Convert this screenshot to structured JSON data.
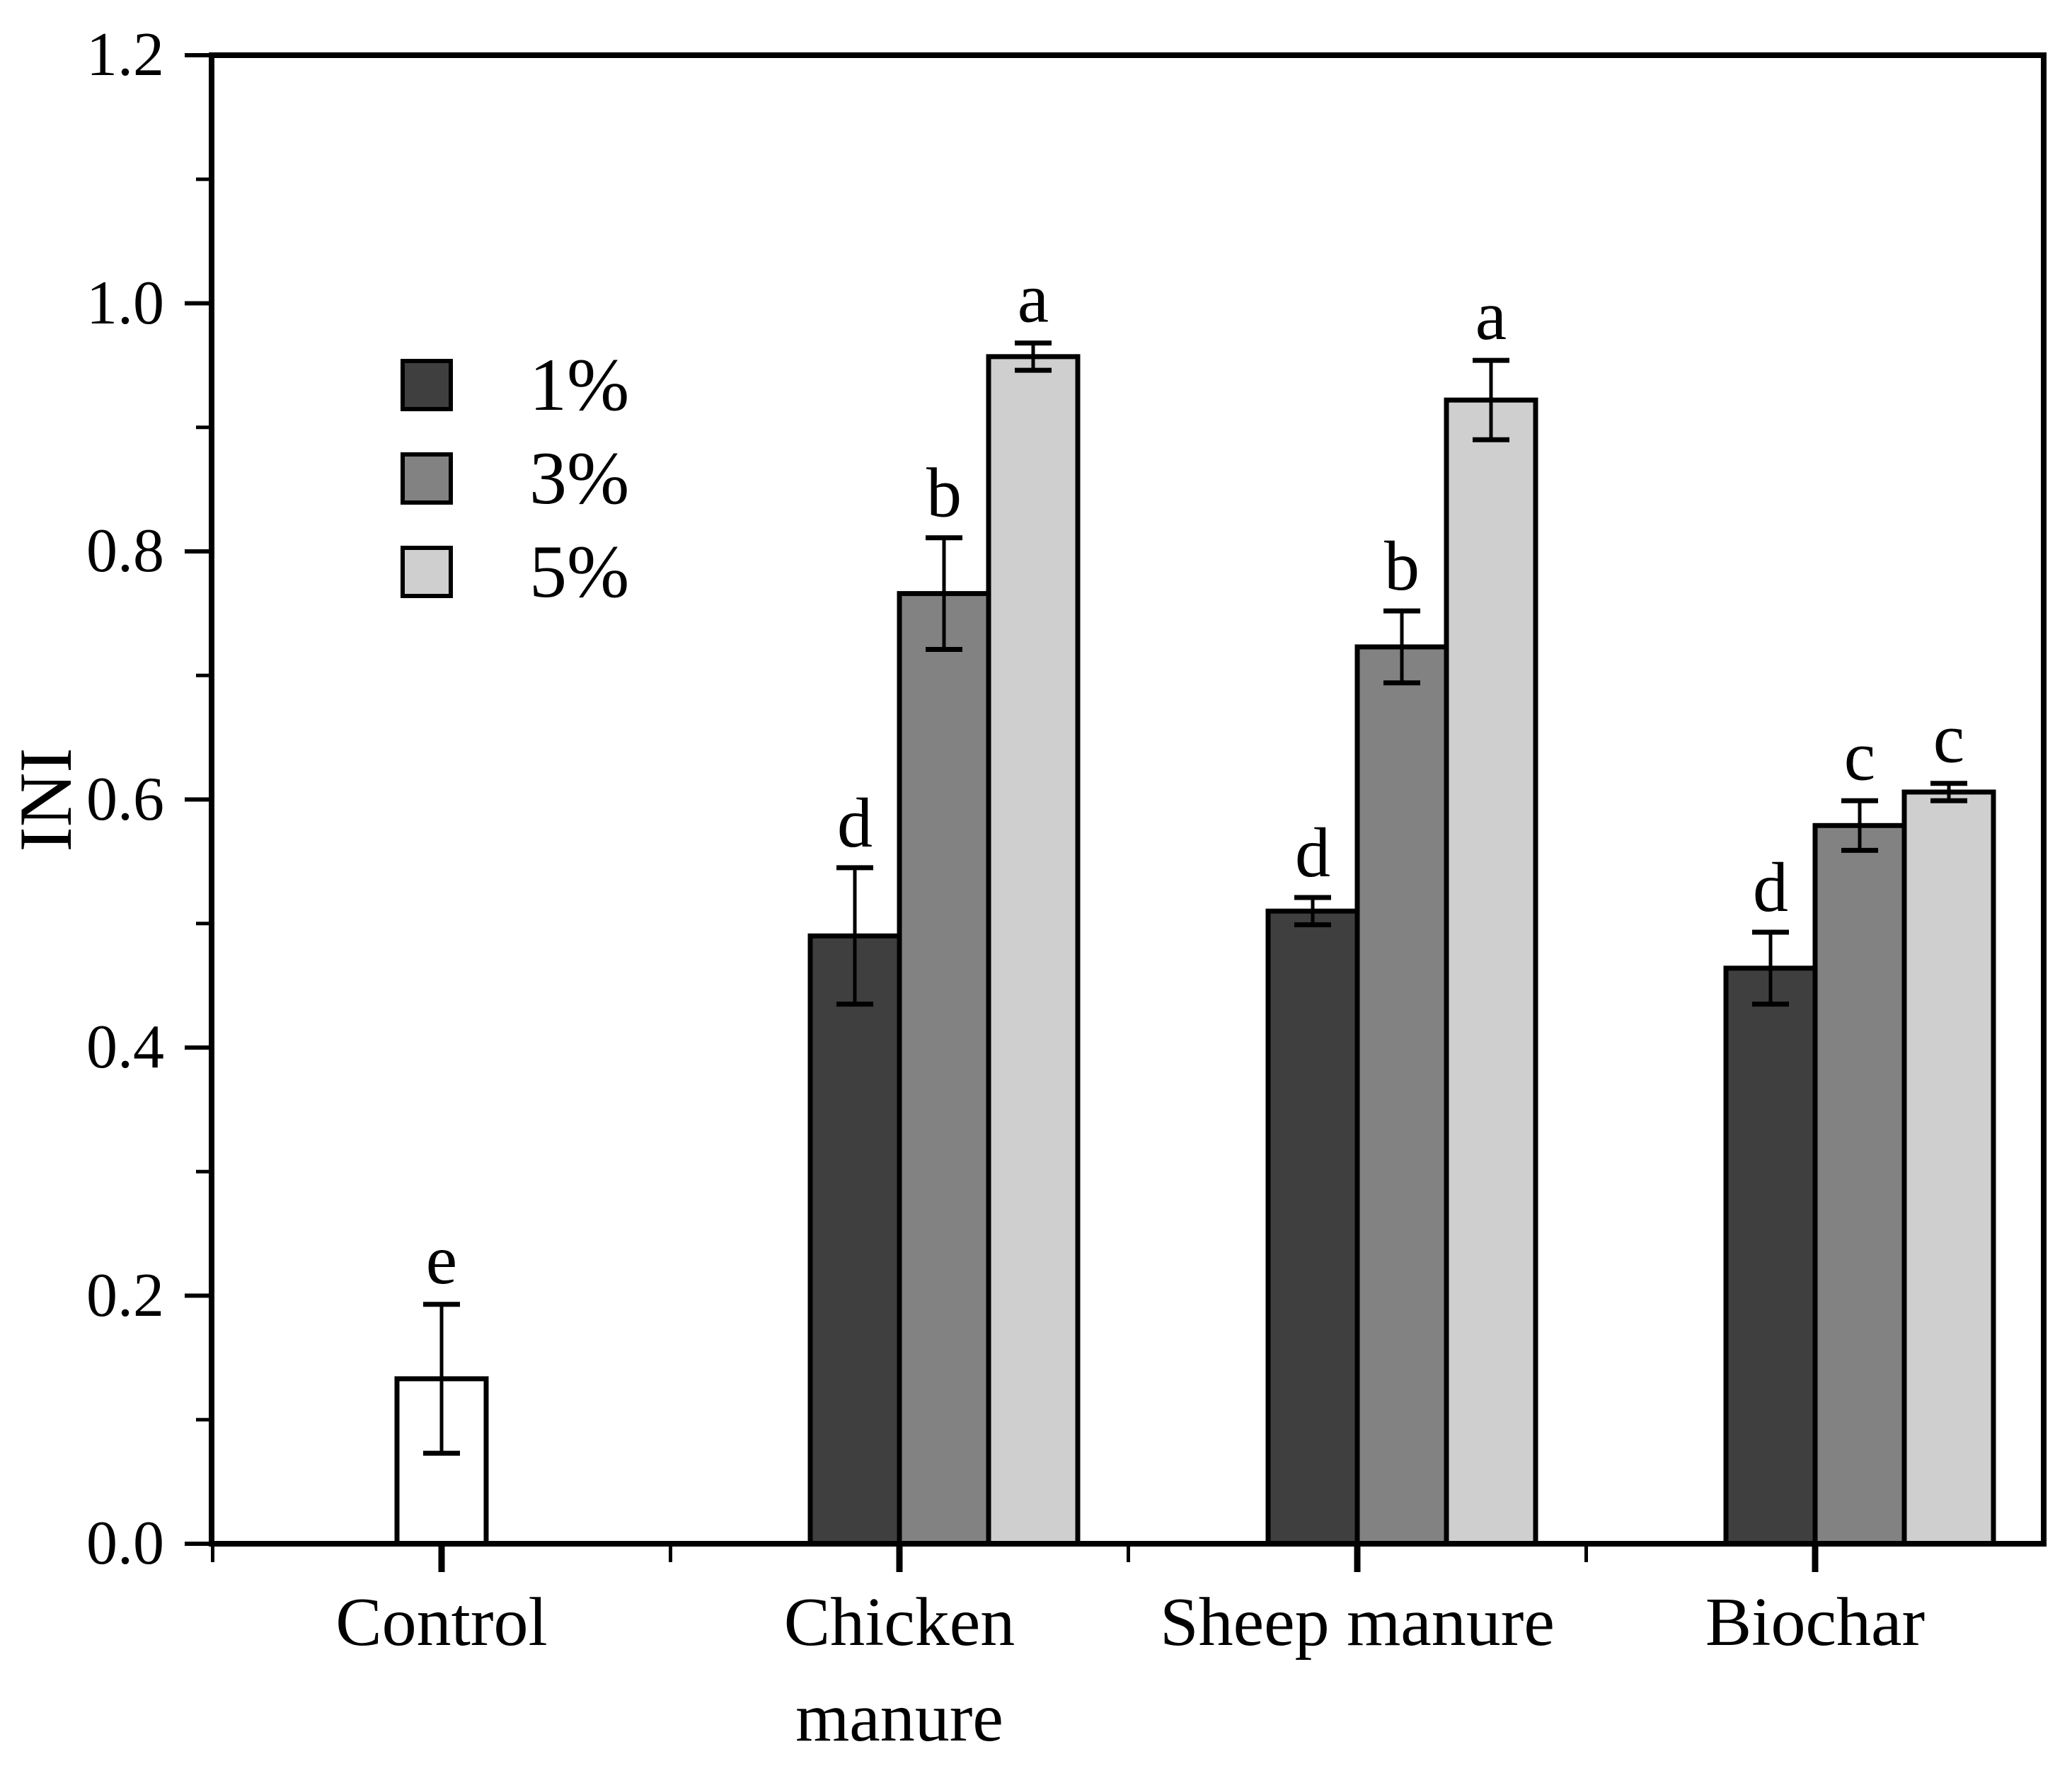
{
  "chart_data": {
    "type": "bar",
    "title": "",
    "ylabel": "INI",
    "xlabel": "",
    "ylim": [
      0.0,
      1.2
    ],
    "y_major_step": 0.2,
    "y_minor_step": 0.1,
    "y_tick_labels": [
      "1.2",
      "1.0",
      "0.8",
      "0.6",
      "0.4",
      "0.2",
      "0.0"
    ],
    "categories": [
      "Control",
      "Chicken manure",
      "Sheep manure",
      "Biochar"
    ],
    "x_tick_display": [
      [
        "Control"
      ],
      [
        "Chicken",
        "manure"
      ],
      [
        "Sheep manure"
      ],
      [
        "Biochar"
      ]
    ],
    "grid": false,
    "frame": true,
    "bar_edge_color": "#000000",
    "background_color": "#ffffff",
    "legend_position": "inside-upper-left",
    "series": [
      {
        "name": "1%",
        "color": "#3f3f3f",
        "values": [
          null,
          0.49,
          0.51,
          0.464
        ],
        "errors": [
          null,
          0.055,
          0.011,
          0.029
        ],
        "letters": [
          null,
          "d",
          "d",
          "d"
        ]
      },
      {
        "name": "3%",
        "color": "#828282",
        "values": [
          null,
          0.766,
          0.723,
          0.579
        ],
        "errors": [
          null,
          0.045,
          0.029,
          0.02
        ],
        "letters": [
          null,
          "b",
          "b",
          "c"
        ]
      },
      {
        "name": "5%",
        "color": "#cfcfcf",
        "values": [
          null,
          0.957,
          0.922,
          0.606
        ],
        "errors": [
          null,
          0.011,
          0.032,
          0.007
        ],
        "letters": [
          null,
          "a",
          "a",
          "c"
        ]
      }
    ],
    "control_bar": {
      "category": "Control",
      "color": "#ffffff",
      "value": 0.133,
      "error": 0.06,
      "letter": "e"
    }
  }
}
